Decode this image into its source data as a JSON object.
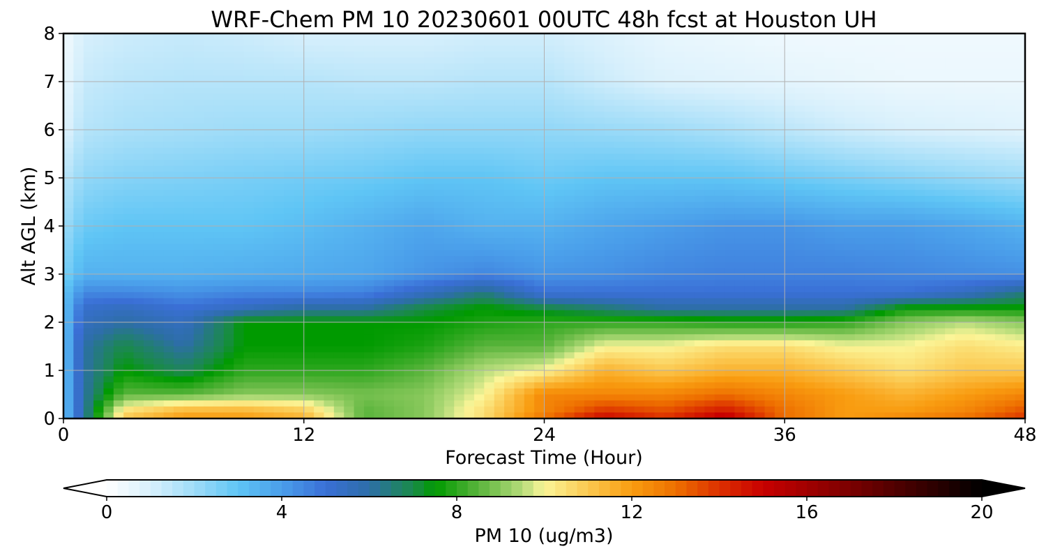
{
  "chart_data": {
    "type": "heatmap",
    "title": "WRF-Chem PM 10  20230601 00UTC 48h fcst at Houston UH",
    "xlabel": "Forecast Time (Hour)",
    "ylabel": "Alt AGL (km)",
    "xlim": [
      0,
      48
    ],
    "ylim": [
      0,
      8
    ],
    "x_ticks": [
      "0",
      "12",
      "24",
      "36",
      "48"
    ],
    "y_ticks": [
      "0",
      "1",
      "2",
      "3",
      "4",
      "5",
      "6",
      "7",
      "8"
    ],
    "grid": true,
    "colorbar": {
      "label": "PM 10  (ug/m3)",
      "range": [
        0,
        20
      ],
      "ticks": [
        "0",
        "4",
        "8",
        "12",
        "16",
        "20"
      ],
      "extend": "both",
      "color_stops": [
        {
          "value": 0,
          "color": "#ffffff"
        },
        {
          "value": 1,
          "color": "#d8f0fc"
        },
        {
          "value": 2,
          "color": "#9fdcf8"
        },
        {
          "value": 3,
          "color": "#5fc5f5"
        },
        {
          "value": 4,
          "color": "#4a9eea"
        },
        {
          "value": 5,
          "color": "#3a6fd6"
        },
        {
          "value": 6,
          "color": "#2d6ea8"
        },
        {
          "value": 7,
          "color": "#1a8a4a"
        },
        {
          "value": 7.5,
          "color": "#009a00"
        },
        {
          "value": 8.5,
          "color": "#5ab43c"
        },
        {
          "value": 9.5,
          "color": "#b5dc7a"
        },
        {
          "value": 10,
          "color": "#fbf598"
        },
        {
          "value": 11,
          "color": "#fbc850"
        },
        {
          "value": 12,
          "color": "#f99c10"
        },
        {
          "value": 13,
          "color": "#ee7000"
        },
        {
          "value": 14,
          "color": "#dc3000"
        },
        {
          "value": 15,
          "color": "#c80000"
        },
        {
          "value": 17,
          "color": "#7a0000"
        },
        {
          "value": 20,
          "color": "#000000"
        }
      ]
    },
    "hours": [
      0,
      1,
      3,
      6,
      9,
      12,
      15,
      18,
      21,
      24,
      27,
      30,
      33,
      36,
      39,
      42,
      45,
      48
    ],
    "altitudes_km": [
      0,
      0.15,
      0.5,
      1.0,
      1.5,
      2.0,
      2.3,
      2.6,
      3.0,
      4.0,
      5.0,
      6.0,
      7.0,
      8.0
    ],
    "values": [
      [
        3.0,
        6.0,
        11.0,
        12.0,
        12.0,
        11.5,
        8.5,
        9.0,
        10.5,
        13.0,
        15.0,
        14.0,
        15.5,
        13.0,
        12.0,
        12.5,
        13.0,
        14.0
      ],
      [
        3.0,
        6.0,
        10.5,
        11.5,
        11.5,
        11.0,
        8.5,
        9.0,
        10.5,
        12.5,
        14.0,
        13.5,
        14.5,
        13.0,
        12.0,
        12.0,
        12.5,
        13.5
      ],
      [
        3.0,
        6.0,
        8.5,
        8.5,
        9.0,
        9.0,
        8.8,
        9.0,
        10.0,
        12.5,
        12.5,
        12.5,
        13.0,
        12.5,
        12.0,
        11.5,
        12.0,
        12.5
      ],
      [
        3.0,
        6.0,
        7.5,
        6.8,
        8.0,
        8.0,
        8.0,
        8.5,
        9.5,
        10.0,
        11.5,
        11.0,
        11.5,
        11.5,
        11.0,
        10.5,
        11.0,
        11.0
      ],
      [
        3.0,
        6.0,
        7.0,
        6.0,
        7.5,
        7.5,
        7.5,
        7.8,
        8.5,
        8.5,
        10.0,
        10.0,
        10.5,
        10.5,
        10.0,
        10.0,
        10.5,
        10.2
      ],
      [
        3.0,
        5.5,
        6.0,
        5.5,
        7.5,
        7.5,
        7.5,
        7.5,
        7.8,
        8.0,
        8.0,
        8.0,
        7.8,
        7.8,
        8.0,
        9.0,
        9.5,
        9.0
      ],
      [
        3.0,
        5.2,
        5.5,
        5.0,
        5.5,
        6.0,
        6.0,
        7.0,
        7.5,
        7.0,
        6.5,
        6.0,
        6.0,
        6.0,
        6.0,
        7.5,
        7.5,
        7.5
      ],
      [
        3.0,
        4.5,
        4.5,
        4.3,
        4.5,
        4.5,
        4.6,
        5.5,
        6.5,
        5.0,
        5.0,
        5.0,
        5.0,
        5.0,
        5.0,
        5.0,
        5.5,
        6.5
      ],
      [
        2.5,
        3.5,
        3.5,
        3.5,
        3.6,
        3.7,
        3.8,
        4.2,
        4.5,
        4.2,
        4.3,
        4.5,
        4.6,
        4.6,
        4.6,
        4.5,
        4.4,
        4.3
      ],
      [
        2.0,
        2.8,
        3.0,
        3.0,
        3.0,
        3.2,
        3.5,
        3.8,
        3.5,
        3.5,
        3.8,
        4.0,
        4.2,
        4.2,
        4.0,
        4.0,
        3.8,
        3.5
      ],
      [
        1.5,
        2.2,
        2.4,
        2.5,
        2.6,
        2.7,
        2.8,
        3.0,
        3.0,
        2.8,
        3.0,
        3.0,
        3.0,
        2.8,
        2.6,
        2.4,
        2.2,
        2.0
      ],
      [
        0.8,
        1.6,
        1.8,
        1.9,
        2.0,
        2.0,
        2.1,
        2.2,
        2.2,
        2.2,
        2.1,
        2.0,
        1.8,
        1.5,
        1.2,
        1.0,
        0.9,
        0.8
      ],
      [
        0.5,
        1.3,
        1.5,
        1.6,
        1.6,
        1.6,
        1.5,
        1.5,
        1.6,
        1.6,
        1.2,
        0.9,
        0.8,
        0.7,
        0.6,
        0.5,
        0.5,
        0.5
      ],
      [
        0.3,
        1.0,
        1.2,
        1.3,
        1.2,
        1.0,
        1.0,
        1.0,
        1.1,
        1.1,
        0.9,
        0.6,
        0.5,
        0.4,
        0.4,
        0.4,
        0.4,
        0.4
      ]
    ]
  }
}
